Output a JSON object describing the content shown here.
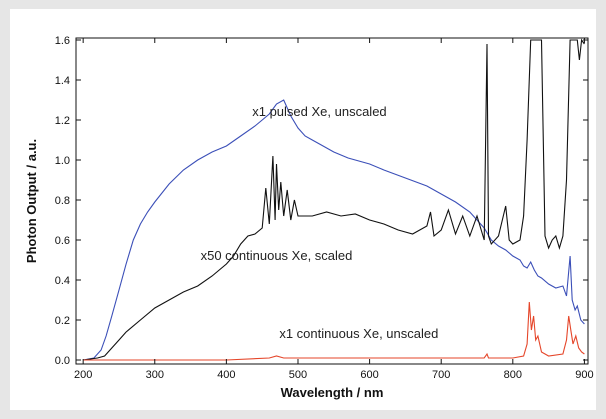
{
  "chart_data": {
    "type": "line",
    "title": "",
    "xlabel": "Wavelength / nm",
    "ylabel": "Photon Output / a.u.",
    "xlim": [
      190,
      905
    ],
    "ylim": [
      -0.02,
      1.61
    ],
    "x_ticks": [
      200,
      300,
      400,
      500,
      600,
      700,
      800,
      900
    ],
    "y_ticks": [
      0.0,
      0.2,
      0.4,
      0.6,
      0.8,
      1.0,
      1.2,
      1.4,
      1.6
    ],
    "x_tick_labels": [
      "200",
      "300",
      "400",
      "500",
      "600",
      "700",
      "800",
      "900"
    ],
    "y_tick_labels": [
      "0.0",
      "0.2",
      "0.4",
      "0.6",
      "0.8",
      "1.0",
      "1.2",
      "1.4",
      "1.6"
    ],
    "grid": false,
    "series": [
      {
        "color": "#3b4fb8",
        "points": [
          [
            200,
            0.0
          ],
          [
            215,
            0.01
          ],
          [
            225,
            0.05
          ],
          [
            232,
            0.12
          ],
          [
            240,
            0.22
          ],
          [
            250,
            0.35
          ],
          [
            260,
            0.48
          ],
          [
            270,
            0.6
          ],
          [
            280,
            0.68
          ],
          [
            290,
            0.74
          ],
          [
            300,
            0.79
          ],
          [
            320,
            0.88
          ],
          [
            340,
            0.95
          ],
          [
            360,
            1.0
          ],
          [
            380,
            1.04
          ],
          [
            400,
            1.07
          ],
          [
            420,
            1.12
          ],
          [
            440,
            1.17
          ],
          [
            450,
            1.2
          ],
          [
            460,
            1.23
          ],
          [
            470,
            1.28
          ],
          [
            480,
            1.3
          ],
          [
            490,
            1.22
          ],
          [
            500,
            1.16
          ],
          [
            510,
            1.12
          ],
          [
            520,
            1.1
          ],
          [
            530,
            1.08
          ],
          [
            550,
            1.04
          ],
          [
            570,
            1.01
          ],
          [
            600,
            0.98
          ],
          [
            620,
            0.95
          ],
          [
            650,
            0.91
          ],
          [
            680,
            0.87
          ],
          [
            700,
            0.83
          ],
          [
            720,
            0.79
          ],
          [
            740,
            0.74
          ],
          [
            750,
            0.7
          ],
          [
            760,
            0.66
          ],
          [
            770,
            0.6
          ],
          [
            780,
            0.57
          ],
          [
            790,
            0.55
          ],
          [
            800,
            0.52
          ],
          [
            810,
            0.5
          ],
          [
            815,
            0.47
          ],
          [
            820,
            0.46
          ],
          [
            825,
            0.49
          ],
          [
            830,
            0.45
          ],
          [
            835,
            0.42
          ],
          [
            840,
            0.41
          ],
          [
            850,
            0.38
          ],
          [
            860,
            0.36
          ],
          [
            870,
            0.37
          ],
          [
            875,
            0.32
          ],
          [
            880,
            0.52
          ],
          [
            883,
            0.3
          ],
          [
            887,
            0.25
          ],
          [
            890,
            0.27
          ],
          [
            895,
            0.2
          ],
          [
            900,
            0.18
          ]
        ]
      },
      {
        "color": "#111111",
        "points": [
          [
            200,
            0.0
          ],
          [
            220,
            0.01
          ],
          [
            230,
            0.02
          ],
          [
            240,
            0.06
          ],
          [
            250,
            0.1
          ],
          [
            260,
            0.14
          ],
          [
            280,
            0.2
          ],
          [
            300,
            0.26
          ],
          [
            320,
            0.3
          ],
          [
            340,
            0.34
          ],
          [
            360,
            0.37
          ],
          [
            380,
            0.42
          ],
          [
            400,
            0.48
          ],
          [
            410,
            0.52
          ],
          [
            420,
            0.58
          ],
          [
            430,
            0.62
          ],
          [
            440,
            0.63
          ],
          [
            450,
            0.66
          ],
          [
            455,
            0.86
          ],
          [
            460,
            0.68
          ],
          [
            465,
            1.02
          ],
          [
            468,
            0.7
          ],
          [
            470,
            0.98
          ],
          [
            473,
            0.75
          ],
          [
            476,
            0.89
          ],
          [
            480,
            0.72
          ],
          [
            485,
            0.85
          ],
          [
            490,
            0.7
          ],
          [
            495,
            0.8
          ],
          [
            500,
            0.72
          ],
          [
            520,
            0.72
          ],
          [
            540,
            0.74
          ],
          [
            560,
            0.72
          ],
          [
            580,
            0.73
          ],
          [
            600,
            0.7
          ],
          [
            620,
            0.68
          ],
          [
            640,
            0.65
          ],
          [
            660,
            0.63
          ],
          [
            680,
            0.67
          ],
          [
            685,
            0.74
          ],
          [
            690,
            0.62
          ],
          [
            700,
            0.65
          ],
          [
            710,
            0.75
          ],
          [
            720,
            0.63
          ],
          [
            730,
            0.72
          ],
          [
            740,
            0.62
          ],
          [
            750,
            0.72
          ],
          [
            760,
            0.6
          ],
          [
            764,
            1.58
          ],
          [
            766,
            0.62
          ],
          [
            770,
            0.58
          ],
          [
            780,
            0.62
          ],
          [
            790,
            0.77
          ],
          [
            795,
            0.6
          ],
          [
            800,
            0.58
          ],
          [
            810,
            0.6
          ],
          [
            815,
            0.72
          ],
          [
            820,
            1.1
          ],
          [
            825,
            1.6
          ],
          [
            840,
            1.6
          ],
          [
            845,
            0.62
          ],
          [
            850,
            0.56
          ],
          [
            855,
            0.6
          ],
          [
            860,
            0.62
          ],
          [
            865,
            0.56
          ],
          [
            870,
            0.62
          ],
          [
            875,
            0.9
          ],
          [
            880,
            1.6
          ],
          [
            890,
            1.6
          ],
          [
            893,
            1.5
          ],
          [
            896,
            1.6
          ],
          [
            900,
            1.58
          ]
        ]
      },
      {
        "color": "#e5462a",
        "points": [
          [
            200,
            0.0
          ],
          [
            300,
            0.0
          ],
          [
            400,
            0.0
          ],
          [
            460,
            0.01
          ],
          [
            470,
            0.02
          ],
          [
            480,
            0.01
          ],
          [
            600,
            0.01
          ],
          [
            700,
            0.01
          ],
          [
            760,
            0.01
          ],
          [
            764,
            0.03
          ],
          [
            766,
            0.01
          ],
          [
            800,
            0.01
          ],
          [
            815,
            0.02
          ],
          [
            820,
            0.08
          ],
          [
            823,
            0.29
          ],
          [
            826,
            0.15
          ],
          [
            829,
            0.22
          ],
          [
            832,
            0.1
          ],
          [
            835,
            0.12
          ],
          [
            840,
            0.04
          ],
          [
            850,
            0.02
          ],
          [
            870,
            0.03
          ],
          [
            875,
            0.1
          ],
          [
            878,
            0.22
          ],
          [
            881,
            0.15
          ],
          [
            884,
            0.08
          ],
          [
            888,
            0.12
          ],
          [
            892,
            0.06
          ],
          [
            896,
            0.04
          ],
          [
            900,
            0.03
          ]
        ]
      }
    ],
    "annotations": [
      {
        "text": "x1 pulsed Xe, unscaled",
        "x": 530,
        "y": 1.22
      },
      {
        "text": "x50 continuous Xe, scaled",
        "x": 470,
        "y": 0.5
      },
      {
        "text": "x1 continuous Xe, unscaled",
        "x": 585,
        "y": 0.11
      }
    ]
  }
}
